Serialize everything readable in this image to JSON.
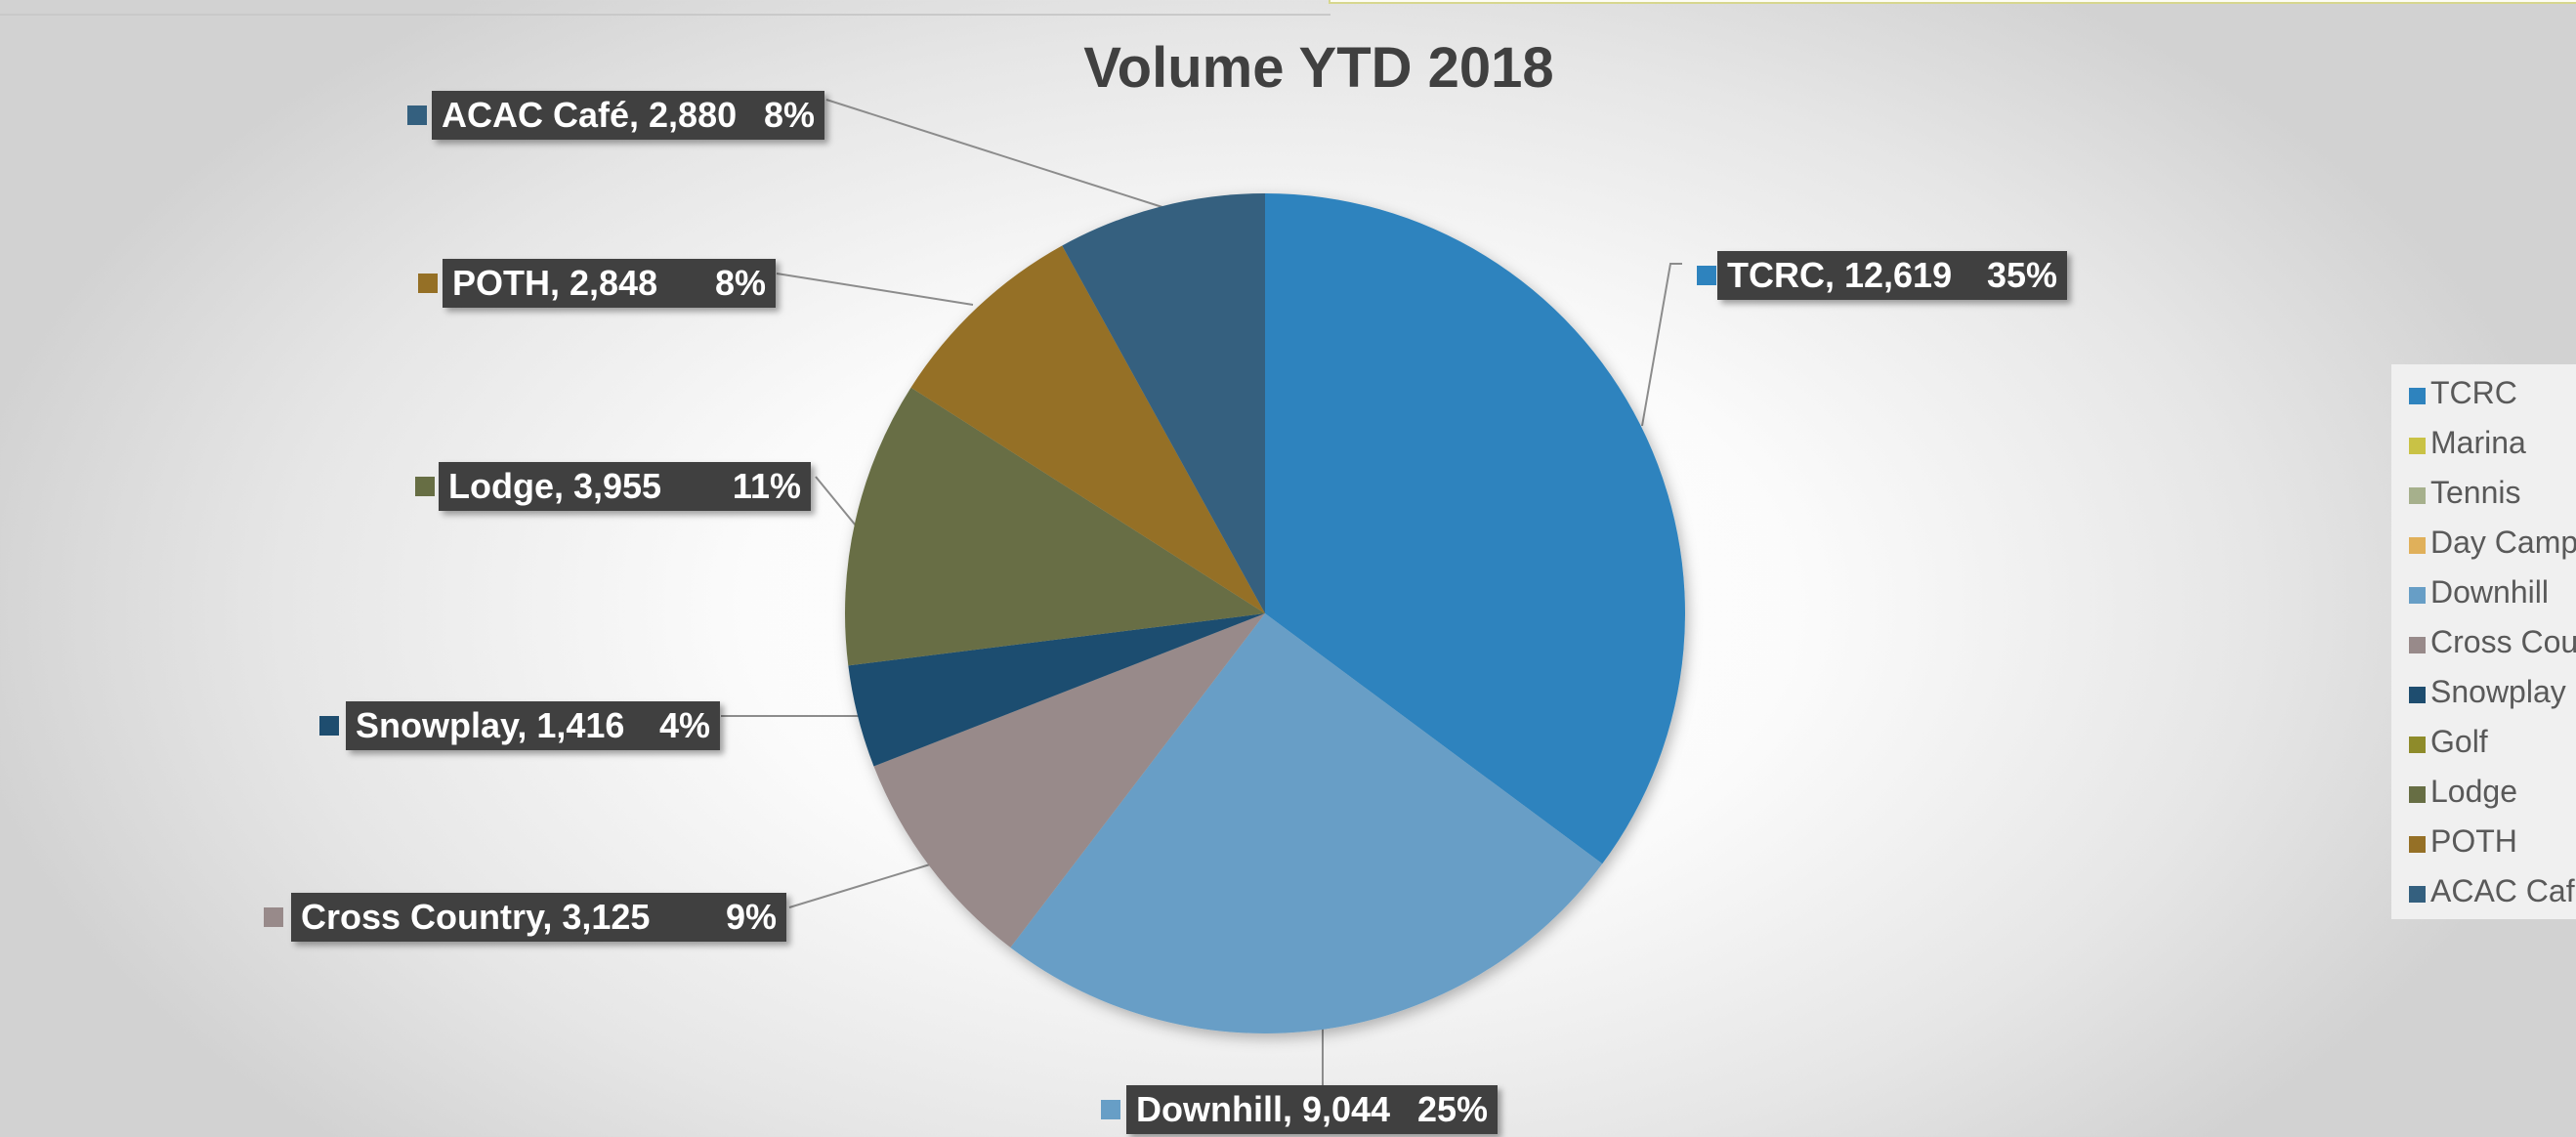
{
  "chart_data": {
    "type": "pie",
    "title": "Volume YTD 2018",
    "categories": [
      "TCRC",
      "Marina",
      "Tennis",
      "Day Camp",
      "Downhill",
      "Cross Country",
      "Snowplay",
      "Golf",
      "Lodge",
      "POTH",
      "ACAC Café"
    ],
    "values": [
      12619,
      0,
      0,
      0,
      9044,
      3125,
      1416,
      0,
      3955,
      2848,
      2880
    ],
    "data_labels": [
      {
        "category": "TCRC",
        "text": "TCRC, 12,619",
        "percent": "35%"
      },
      {
        "category": "Downhill",
        "text": "Downhill, 9,044",
        "percent": "25%"
      },
      {
        "category": "Cross Country",
        "text": "Cross Country, 3,125",
        "percent": "9%"
      },
      {
        "category": "Snowplay",
        "text": "Snowplay, 1,416",
        "percent": "4%"
      },
      {
        "category": "Lodge",
        "text": "Lodge, 3,955",
        "percent": "11%"
      },
      {
        "category": "POTH",
        "text": "POTH, 2,848",
        "percent": "8%"
      },
      {
        "category": "ACAC Café",
        "text": "ACAC Café, 2,880",
        "percent": "8%"
      }
    ],
    "colors": [
      "#2E83BE",
      "#C9C245",
      "#A6B08C",
      "#E0B05A",
      "#679EC6",
      "#988A8A",
      "#1E4D6F",
      "#8E8B2A",
      "#676E44",
      "#957026",
      "#34607F"
    ],
    "legend_labels": [
      "TCRC",
      "Marina",
      "Tennis",
      "Day Camp",
      "Downhill",
      "Cross Cou",
      "Snowplay",
      "Golf",
      "Lodge",
      "POTH",
      "ACAC Caf"
    ],
    "legend_position": "right",
    "start_angle_deg": 0,
    "direction": "clockwise"
  }
}
